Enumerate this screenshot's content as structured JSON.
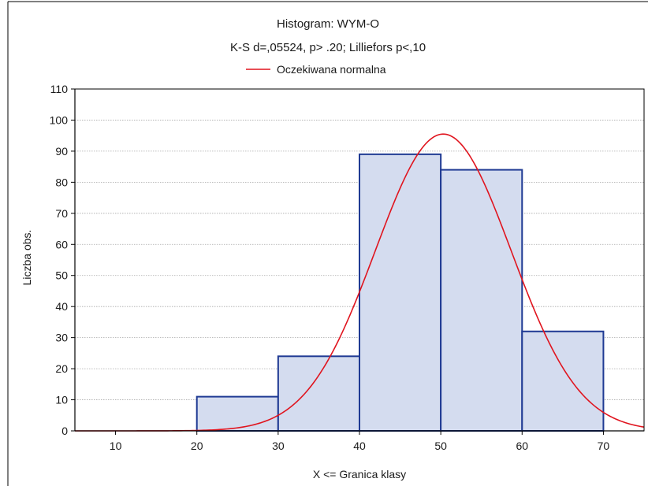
{
  "colors": {
    "bar_fill": "#d4dcef",
    "bar_stroke": "#1f3a93",
    "curve": "#e0141e",
    "grid": "#a8a8a8",
    "axis": "#000000",
    "frame": "#000000"
  },
  "chart_data": {
    "type": "bar",
    "title": "Histogram: WYM-O",
    "subtitle": "K-S d=,05524, p> .20; Lilliefors p<,10",
    "xlabel": "X <= Granica klasy",
    "ylabel": "Liczba obs.",
    "legend": {
      "position": "top-center",
      "entries": [
        {
          "name": "Oczekiwana normalna",
          "kind": "line"
        }
      ]
    },
    "xlim": [
      5,
      75
    ],
    "ylim": [
      0,
      110
    ],
    "xticks": [
      10,
      20,
      30,
      40,
      50,
      60,
      70
    ],
    "yticks": [
      0,
      10,
      20,
      30,
      40,
      50,
      60,
      70,
      80,
      90,
      100,
      110
    ],
    "grid": {
      "horizontal": true,
      "vertical": false
    },
    "bins": [
      {
        "from": 20,
        "to": 30,
        "count": 11
      },
      {
        "from": 30,
        "to": 40,
        "count": 24
      },
      {
        "from": 40,
        "to": 50,
        "count": 89
      },
      {
        "from": 50,
        "to": 60,
        "count": 84
      },
      {
        "from": 60,
        "to": 70,
        "count": 32
      }
    ],
    "curve": {
      "name": "Oczekiwana normalna",
      "mean": 50.3,
      "sd": 8.36,
      "peak": 95.5
    }
  }
}
